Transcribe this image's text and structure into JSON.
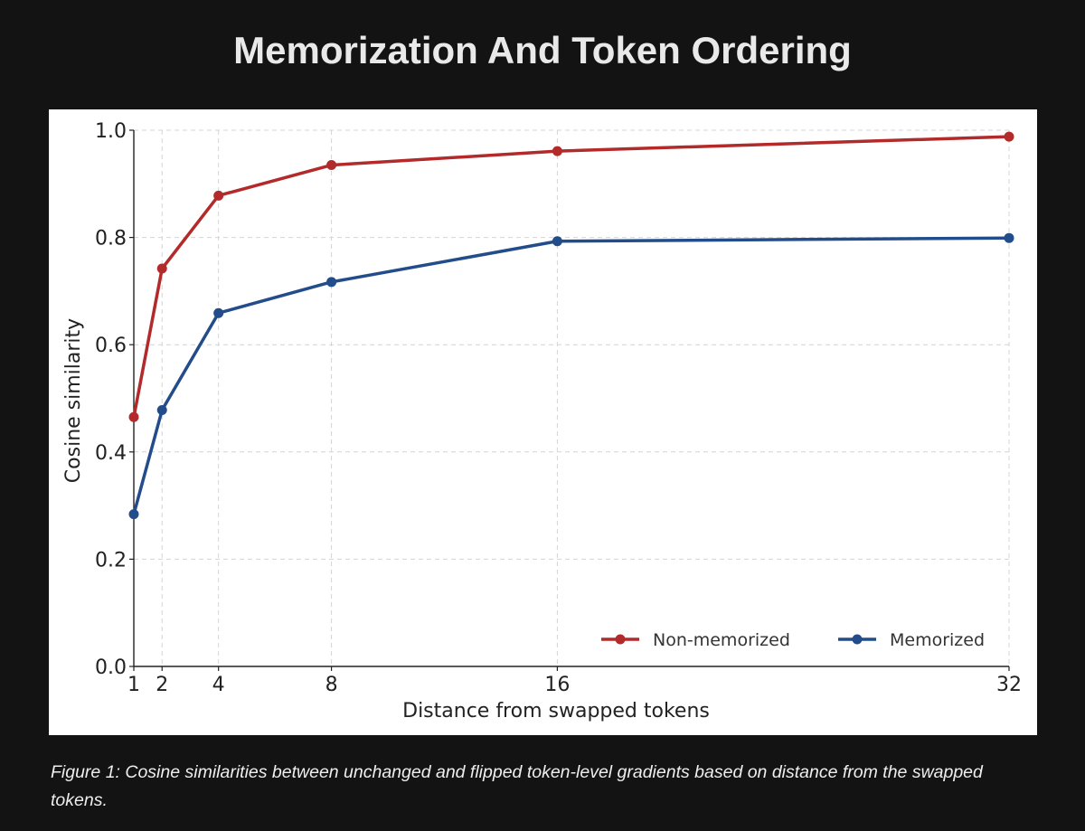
{
  "page": {
    "title": "Memorization And Token Ordering",
    "caption": "Figure 1: Cosine similarities between unchanged and flipped token-level gradients based on distance from the swapped tokens."
  },
  "chart_data": {
    "type": "line",
    "title": "",
    "xlabel": "Distance from swapped tokens",
    "ylabel": "Cosine similarity",
    "x": [
      1,
      2,
      4,
      8,
      16,
      32
    ],
    "x_tick_labels": [
      "1",
      "2",
      "4",
      "8",
      "16",
      "32"
    ],
    "y_ticks": [
      0.0,
      0.2,
      0.4,
      0.6,
      0.8,
      1.0
    ],
    "y_tick_labels": [
      "0.0",
      "0.2",
      "0.4",
      "0.6",
      "0.8",
      "1.0"
    ],
    "xlim": [
      1,
      32
    ],
    "ylim": [
      0.0,
      1.0
    ],
    "grid": true,
    "legend_position": "lower-right",
    "series": [
      {
        "name": "Non-memorized",
        "color": "#b22a2a",
        "values": [
          0.465,
          0.742,
          0.878,
          0.935,
          0.961,
          0.988
        ]
      },
      {
        "name": "Memorized",
        "color": "#234c8a",
        "values": [
          0.284,
          0.478,
          0.659,
          0.717,
          0.793,
          0.799
        ]
      }
    ]
  }
}
